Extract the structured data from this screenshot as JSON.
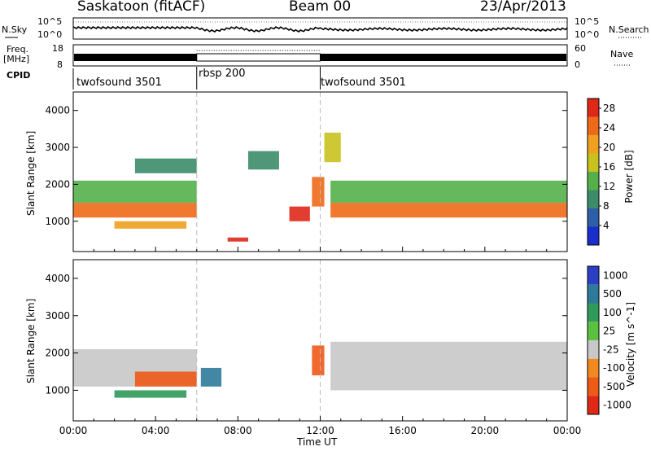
{
  "header": {
    "station": "Saskatoon (fitACF)",
    "beam": "Beam 00",
    "date": "23/Apr/2013"
  },
  "top_panels": {
    "nsky_label": "N.Sky",
    "nsky_ticks": [
      "10^5",
      "10^0"
    ],
    "nsearch_label": "N.Search",
    "nsearch_ticks": [
      "10^5",
      "10^0"
    ],
    "freq_label_1": "Freq.",
    "freq_label_2": "[MHz]",
    "freq_ticks": [
      "18",
      "8"
    ],
    "nave_label": "Nave",
    "nave_ticks": [
      "60",
      "0"
    ],
    "cpid_label": "CPID",
    "cpid_segments": [
      {
        "name": "twofsound 3501",
        "start": 0,
        "end": 6
      },
      {
        "name": "rbsp 200",
        "start": 6,
        "end": 12
      },
      {
        "name": "twofsound 3501",
        "start": 12,
        "end": 24
      }
    ]
  },
  "chart_data": [
    {
      "type": "heatmap",
      "title": "",
      "xlabel": "Time UT",
      "ylabel": "Slant Range [km]",
      "x_ticks": [
        "00:00",
        "04:00",
        "08:00",
        "12:00",
        "16:00",
        "20:00",
        "00:00"
      ],
      "xlim_hours": [
        0,
        24
      ],
      "y_ticks": [
        1000,
        2000,
        3000,
        4000
      ],
      "ylim": [
        180,
        4500
      ],
      "colorbar": {
        "label": "Power [dB]",
        "ticks": [
          4,
          8,
          12,
          16,
          20,
          24,
          28
        ],
        "range": [
          0,
          30
        ],
        "colors": [
          "#1a2ecc",
          "#2c5fa8",
          "#3c8c6a",
          "#55b04a",
          "#c9c21e",
          "#f0a020",
          "#ee6a18",
          "#e02818"
        ]
      },
      "bands": [
        {
          "t0": 0,
          "t1": 6,
          "r0": 1100,
          "r1": 1500,
          "value": 26
        },
        {
          "t0": 0,
          "t1": 6,
          "r0": 1500,
          "r1": 2100,
          "value": 14
        },
        {
          "t0": 2,
          "t1": 5.5,
          "r0": 800,
          "r1": 1000,
          "value": 20
        },
        {
          "t0": 3,
          "t1": 6,
          "r0": 2300,
          "r1": 2700,
          "value": 10
        },
        {
          "t0": 10.5,
          "t1": 11.5,
          "r0": 1000,
          "r1": 1400,
          "value": 27
        },
        {
          "t0": 11.6,
          "t1": 12.2,
          "r0": 1400,
          "r1": 2200,
          "value": 24
        },
        {
          "t0": 12.5,
          "t1": 24,
          "r0": 1100,
          "r1": 1500,
          "value": 25
        },
        {
          "t0": 12.5,
          "t1": 24,
          "r0": 1500,
          "r1": 2100,
          "value": 12
        },
        {
          "t0": 8.5,
          "t1": 10,
          "r0": 2400,
          "r1": 2900,
          "value": 9
        },
        {
          "t0": 12.2,
          "t1": 13,
          "r0": 2600,
          "r1": 3400,
          "value": 16
        },
        {
          "t0": 7.5,
          "t1": 8.5,
          "r0": 450,
          "r1": 560,
          "value": 28
        }
      ]
    },
    {
      "type": "heatmap",
      "title": "",
      "xlabel": "Time UT",
      "ylabel": "Slant Range [km]",
      "x_ticks": [
        "00:00",
        "04:00",
        "08:00",
        "12:00",
        "16:00",
        "20:00",
        "00:00"
      ],
      "xlim_hours": [
        0,
        24
      ],
      "y_ticks": [
        1000,
        2000,
        3000,
        4000
      ],
      "ylim": [
        180,
        4500
      ],
      "colorbar": {
        "label": "Velocity [m s^-1]",
        "ticks": [
          1000,
          500,
          100,
          25,
          -25,
          -100,
          -500,
          -1000
        ],
        "colors": [
          "#2b3fc4",
          "#2d7a9a",
          "#2f9a5a",
          "#5cc040",
          "#c8c8c8",
          "#f08a20",
          "#ee5a18",
          "#e02818"
        ]
      },
      "bands": [
        {
          "t0": 0,
          "t1": 6,
          "r0": 1100,
          "r1": 2100,
          "value": 0
        },
        {
          "t0": 12.5,
          "t1": 24,
          "r0": 1000,
          "r1": 2300,
          "value": 0
        },
        {
          "t0": 2,
          "t1": 5.5,
          "r0": 800,
          "r1": 1000,
          "value": 200
        },
        {
          "t0": 3,
          "t1": 6,
          "r0": 1100,
          "r1": 1500,
          "value": -200
        },
        {
          "t0": 11.6,
          "t1": 12.2,
          "r0": 1400,
          "r1": 2200,
          "value": -200
        },
        {
          "t0": 6.2,
          "t1": 7.2,
          "r0": 1100,
          "r1": 1600,
          "value": 600
        }
      ]
    }
  ]
}
